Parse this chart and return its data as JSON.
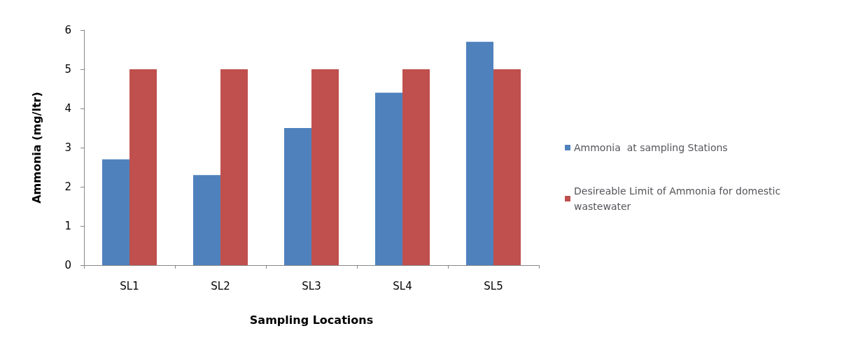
{
  "chart_data": {
    "type": "bar",
    "xlabel": "Sampling Locations",
    "ylabel": "Ammonia (mg/ltr)",
    "categories": [
      "SL1",
      "SL2",
      "SL3",
      "SL4",
      "SL5"
    ],
    "series": [
      {
        "name": "Ammonia  at sampling Stations",
        "color": "#4f81bd",
        "values": [
          2.7,
          2.3,
          3.5,
          4.4,
          5.7
        ]
      },
      {
        "name": "Desireable Limit of Ammonia for domestic wastewater",
        "color": "#c0504d",
        "values": [
          5,
          5,
          5,
          5,
          5
        ]
      }
    ],
    "ylim": [
      0,
      6
    ],
    "yticks": [
      0,
      1,
      2,
      3,
      4,
      5,
      6
    ],
    "grid": false,
    "legend": "right"
  }
}
